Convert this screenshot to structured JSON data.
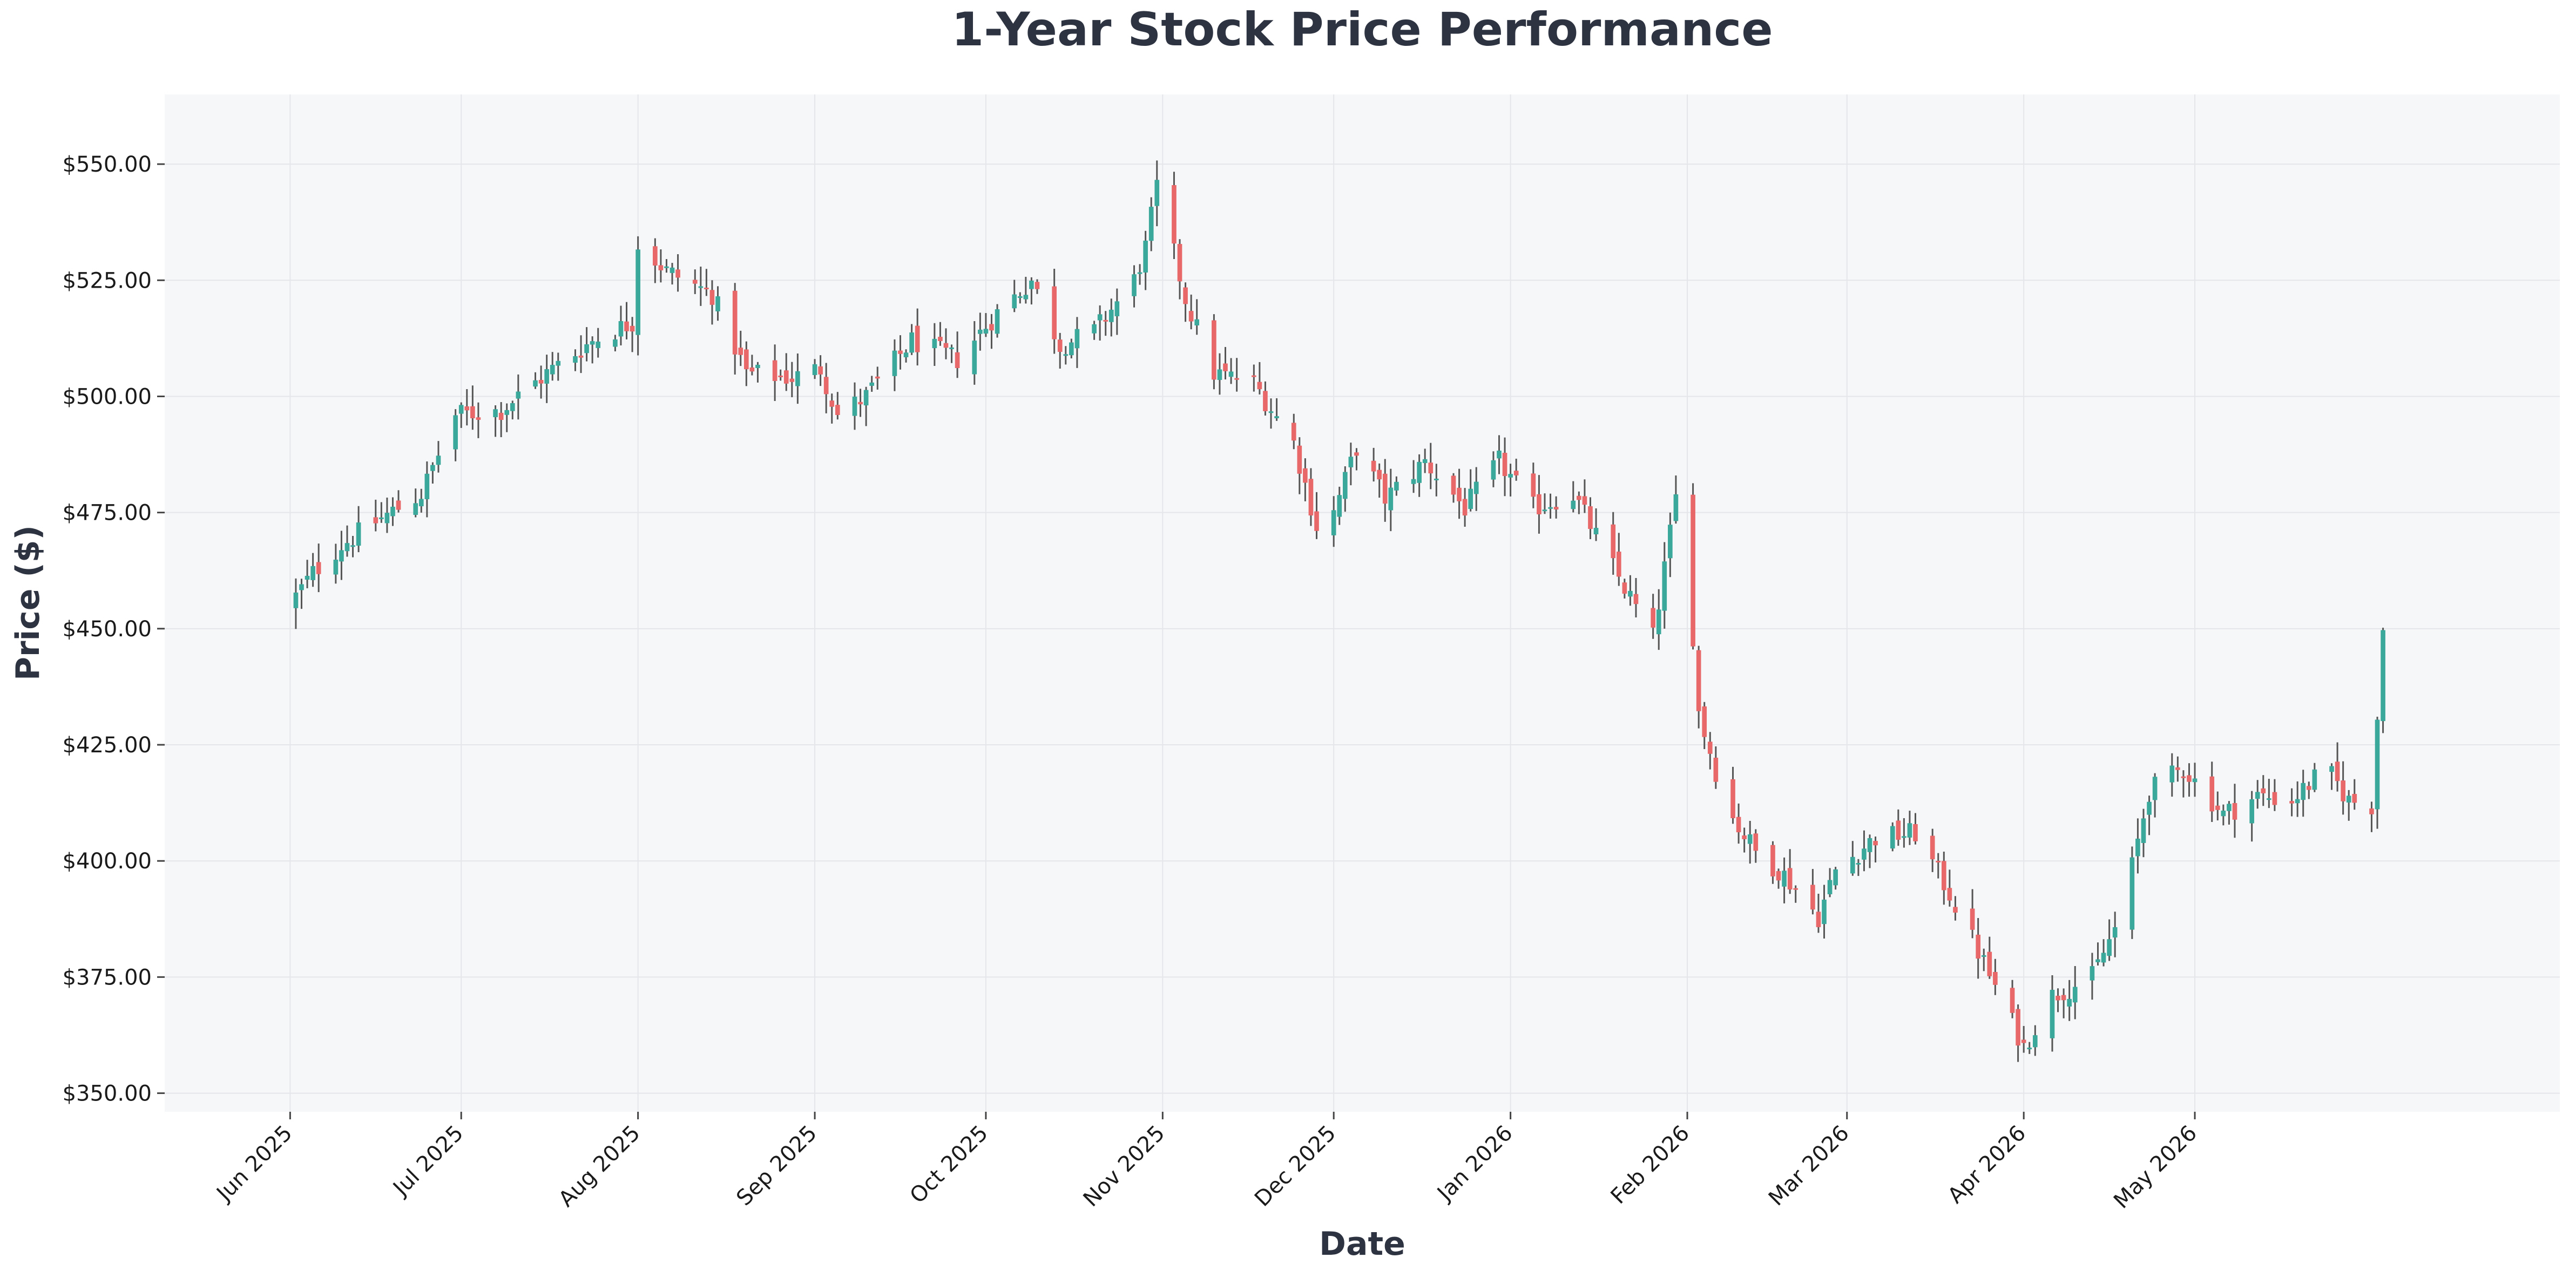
{
  "chart_data": {
    "type": "candlestick",
    "title": "1-Year Stock Price Performance",
    "xlabel": "Date",
    "ylabel": "Price ($)",
    "ylim": [
      346,
      565
    ],
    "xlim": [
      "2025-05-10",
      "2026-07-04"
    ],
    "grid": true,
    "colors": {
      "up": "#3aa99b",
      "down": "#e8686a",
      "wick": "#555555",
      "plot_bg": "#f6f7f9",
      "grid": "#e4e6ea"
    },
    "y_ticks": [
      {
        "value": 350,
        "label": "$350.00"
      },
      {
        "value": 375,
        "label": "$375.00"
      },
      {
        "value": 400,
        "label": "$400.00"
      },
      {
        "value": 425,
        "label": "$425.00"
      },
      {
        "value": 450,
        "label": "$450.00"
      },
      {
        "value": 475,
        "label": "$475.00"
      },
      {
        "value": 500,
        "label": "$500.00"
      },
      {
        "value": 525,
        "label": "$525.00"
      },
      {
        "value": 550,
        "label": "$550.00"
      }
    ],
    "x_ticks": [
      {
        "date": "2025-06-01",
        "label": "Jun 2025"
      },
      {
        "date": "2025-07-01",
        "label": "Jul 2025"
      },
      {
        "date": "2025-08-01",
        "label": "Aug 2025"
      },
      {
        "date": "2025-09-01",
        "label": "Sep 2025"
      },
      {
        "date": "2025-10-01",
        "label": "Oct 2025"
      },
      {
        "date": "2025-11-01",
        "label": "Nov 2025"
      },
      {
        "date": "2025-12-01",
        "label": "Dec 2025"
      },
      {
        "date": "2026-01-01",
        "label": "Jan 2026"
      },
      {
        "date": "2026-02-01",
        "label": "Feb 2026"
      },
      {
        "date": "2026-03-01",
        "label": "Mar 2026"
      },
      {
        "date": "2026-04-01",
        "label": "Apr 2026"
      },
      {
        "date": "2026-05-01",
        "label": "May 2026"
      }
    ],
    "close_anchors": [
      [
        "2025-06-02",
        457
      ],
      [
        "2025-06-05",
        462
      ],
      [
        "2025-06-10",
        468
      ],
      [
        "2025-06-16",
        473
      ],
      [
        "2025-06-24",
        479
      ],
      [
        "2025-06-30",
        496
      ],
      [
        "2025-07-08",
        497
      ],
      [
        "2025-07-16",
        505
      ],
      [
        "2025-07-24",
        512
      ],
      [
        "2025-07-31",
        516
      ],
      [
        "2025-08-01",
        533
      ],
      [
        "2025-08-06",
        527
      ],
      [
        "2025-08-14",
        522
      ],
      [
        "2025-08-20",
        505
      ],
      [
        "2025-08-28",
        504
      ],
      [
        "2025-09-02",
        506
      ],
      [
        "2025-09-05",
        496
      ],
      [
        "2025-09-10",
        500
      ],
      [
        "2025-09-18",
        512
      ],
      [
        "2025-09-26",
        508
      ],
      [
        "2025-10-03",
        518
      ],
      [
        "2025-10-09",
        525
      ],
      [
        "2025-10-14",
        511
      ],
      [
        "2025-10-20",
        514
      ],
      [
        "2025-10-27",
        525
      ],
      [
        "2025-10-29",
        532
      ],
      [
        "2025-10-31",
        545
      ],
      [
        "2025-11-05",
        521
      ],
      [
        "2025-11-10",
        505
      ],
      [
        "2025-11-17",
        503
      ],
      [
        "2025-11-24",
        490
      ],
      [
        "2025-11-28",
        472
      ],
      [
        "2025-12-01",
        475
      ],
      [
        "2025-12-05",
        489
      ],
      [
        "2025-12-10",
        478
      ],
      [
        "2025-12-17",
        486
      ],
      [
        "2025-12-24",
        476
      ],
      [
        "2025-12-30",
        486
      ],
      [
        "2026-01-05",
        476
      ],
      [
        "2026-01-12",
        479
      ],
      [
        "2026-01-20",
        461
      ],
      [
        "2026-01-26",
        448
      ],
      [
        "2026-01-30",
        478
      ],
      [
        "2026-01-31",
        482
      ],
      [
        "2026-02-03",
        432
      ],
      [
        "2026-02-08",
        411
      ],
      [
        "2026-02-13",
        402
      ],
      [
        "2026-02-18",
        397
      ],
      [
        "2026-02-24",
        388
      ],
      [
        "2026-02-27",
        398
      ],
      [
        "2026-03-06",
        405
      ],
      [
        "2026-03-13",
        406
      ],
      [
        "2026-03-19",
        393
      ],
      [
        "2026-03-25",
        378
      ],
      [
        "2026-04-01",
        360
      ],
      [
        "2026-04-06",
        371
      ],
      [
        "2026-04-13",
        375
      ],
      [
        "2026-04-18",
        388
      ],
      [
        "2026-04-23",
        415
      ],
      [
        "2026-04-29",
        420
      ],
      [
        "2026-05-06",
        410
      ],
      [
        "2026-05-12",
        414
      ],
      [
        "2026-05-18",
        413
      ],
      [
        "2026-05-24",
        420
      ],
      [
        "2026-05-28",
        413
      ],
      [
        "2026-06-01",
        412
      ],
      [
        "2026-06-03",
        450
      ]
    ]
  }
}
